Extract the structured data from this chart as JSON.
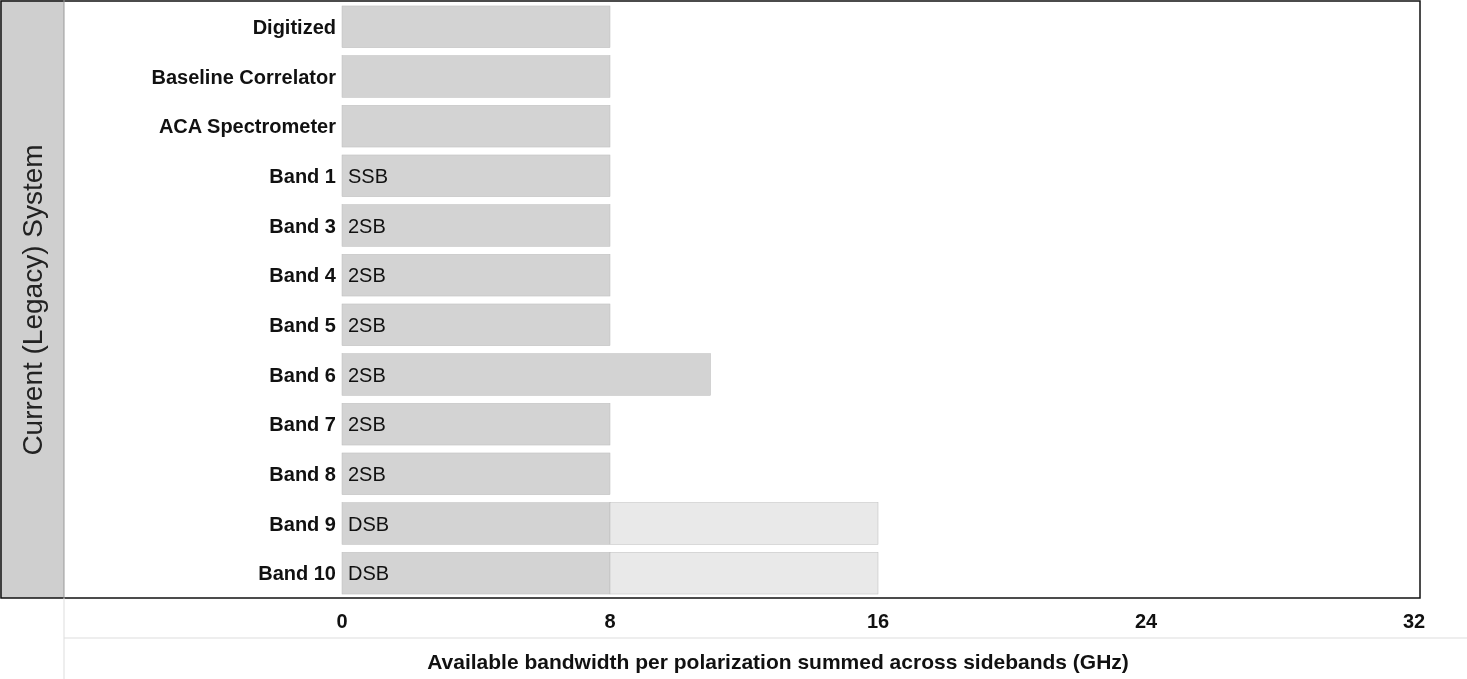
{
  "chart_data": {
    "type": "bar",
    "orientation": "horizontal",
    "stacked": true,
    "ylabel": "Current (Legacy) System",
    "xlabel": "Available bandwidth per polarization summed across sidebands (GHz)",
    "categories": [
      "Digitized",
      "Baseline Correlator",
      "ACA Spectrometer",
      "Band 1",
      "Band 3",
      "Band 4",
      "Band 5",
      "Band 6",
      "Band 7",
      "Band 8",
      "Band 9",
      "Band 10"
    ],
    "series": [
      {
        "color": "#d3d3d3",
        "values": [
          8,
          8,
          8,
          8,
          8,
          8,
          8,
          11,
          8,
          8,
          8,
          8
        ]
      },
      {
        "color": "#e9e9e9",
        "values": [
          null,
          null,
          null,
          null,
          null,
          null,
          null,
          null,
          null,
          null,
          8,
          8
        ]
      }
    ],
    "xlim": [
      0,
      32
    ],
    "xticks": [
      0,
      8,
      16,
      24,
      32
    ],
    "grid": false,
    "annotations": [
      {
        "text": "SSB",
        "y": "Band 1"
      },
      {
        "text": "2SB",
        "y": "Band 3"
      },
      {
        "text": "2SB",
        "y": "Band 4"
      },
      {
        "text": "2SB",
        "y": "Band 5"
      },
      {
        "text": "2SB",
        "y": "Band 6"
      },
      {
        "text": "2SB",
        "y": "Band 7"
      },
      {
        "text": "2SB",
        "y": "Band 8"
      },
      {
        "text": "DSB",
        "y": "Band 9"
      },
      {
        "text": "DSB",
        "y": "Band 10"
      }
    ]
  }
}
